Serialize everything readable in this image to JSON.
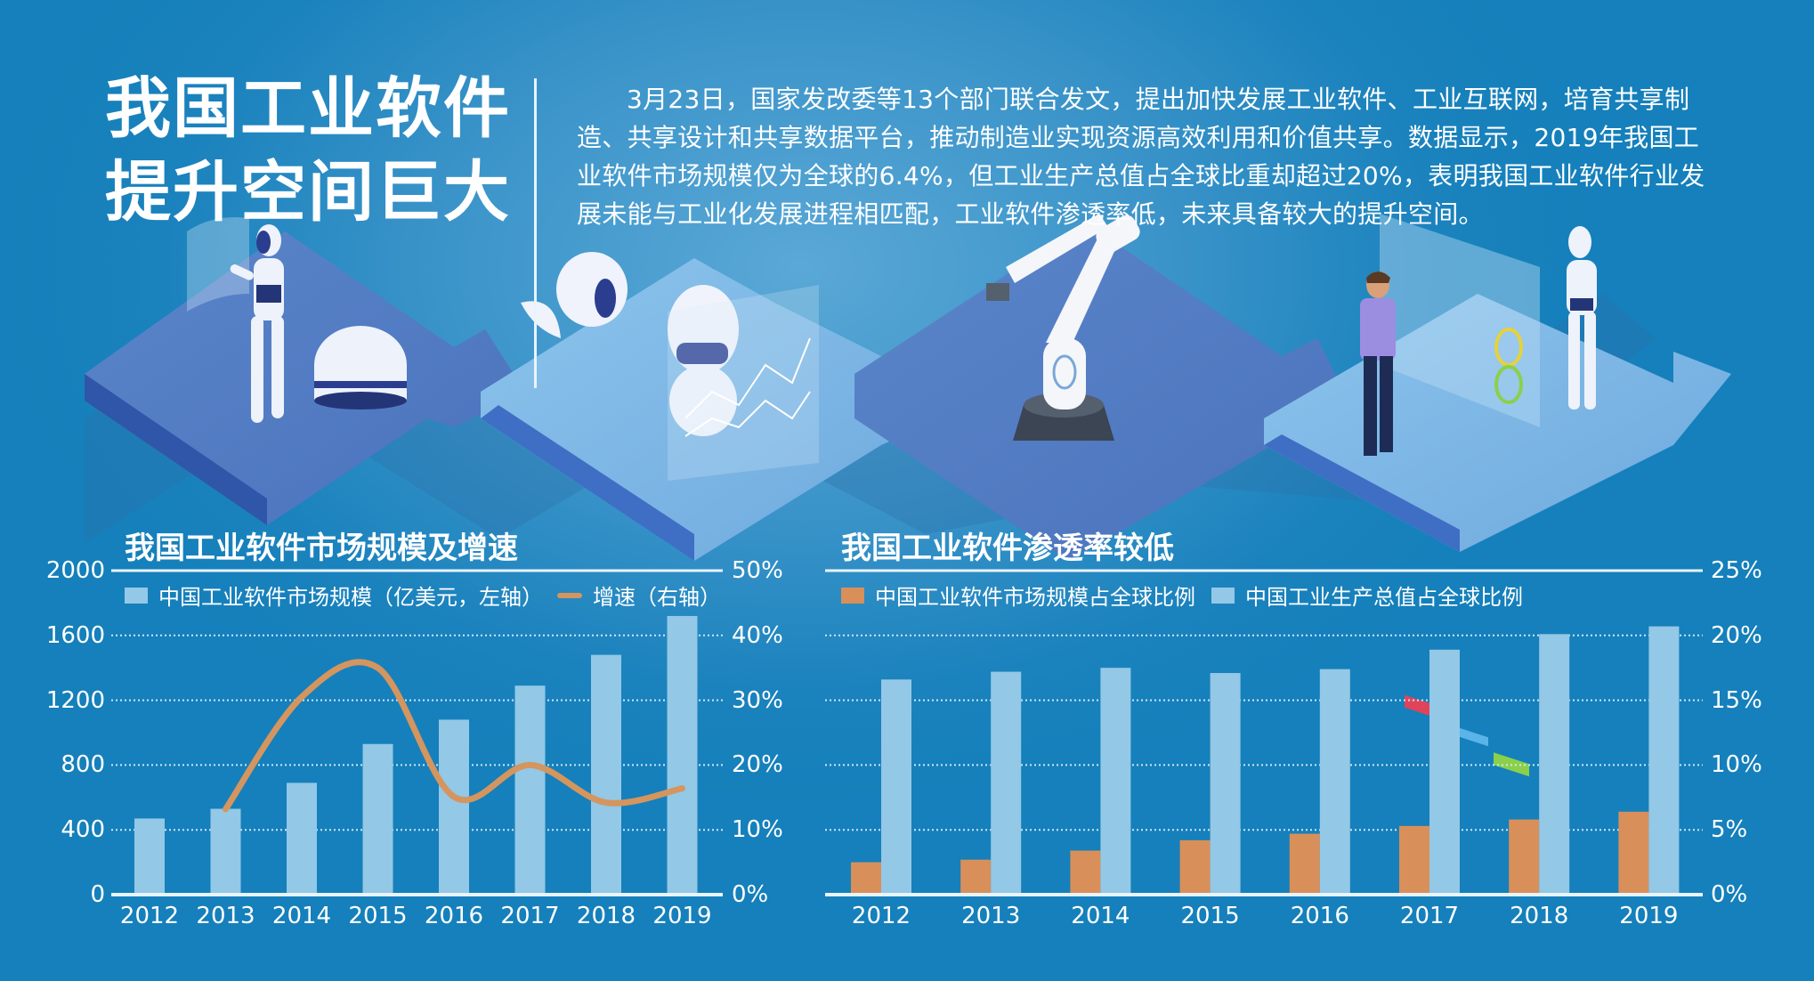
{
  "header": {
    "title_line1": "我国工业软件",
    "title_line2": "提升空间巨大",
    "paragraph": "3月23日，国家发改委等13个部门联合发文，提出加快发展工业软件、工业互联网，培育共享制造、共享设计和共享数据平台，推动制造业实现资源高效利用和价值共享。数据显示，2019年我国工业软件市场规模仅为全球的6.4%，但工业生产总值占全球比重却超过20%，表明我国工业软件行业发展未能与工业化发展进程相匹配，工业软件渗透率低，未来具备较大的提升空间。"
  },
  "illustration": {
    "items": [
      "humanoid-robot-with-hologram",
      "dome-robot",
      "service-robot-with-chart",
      "industrial-robot-arm",
      "engineer-at-dashboard",
      "humanoid-robot"
    ]
  },
  "colors": {
    "background": "#1580bb",
    "bar_light": "#93c8e6",
    "bar_orange": "#d98f5a",
    "line_orange": "#d4955f",
    "text": "#ffffff"
  },
  "charts": {
    "left": {
      "title": "我国工业软件市场规模及增速",
      "legend": {
        "bar": "中国工业软件市场规模（亿美元，左轴）",
        "line": "增速（右轴）"
      },
      "y_left_ticks": [
        "2000",
        "1600",
        "1200",
        "800",
        "400",
        "0"
      ],
      "y_right_ticks": [
        "50%",
        "40%",
        "30%",
        "20%",
        "10%",
        "0%"
      ],
      "x_ticks": [
        "2012",
        "2013",
        "2014",
        "2015",
        "2016",
        "2017",
        "2018",
        "2019"
      ]
    },
    "right": {
      "title": "我国工业软件渗透率较低",
      "legend": {
        "orange": "中国工业软件市场规模占全球比例",
        "light": "中国工业生产总值占全球比例"
      },
      "y_right_ticks": [
        "25%",
        "20%",
        "15%",
        "10%",
        "5%",
        "0%"
      ],
      "x_ticks": [
        "2012",
        "2013",
        "2014",
        "2015",
        "2016",
        "2017",
        "2018",
        "2019"
      ]
    }
  },
  "chart_data": [
    {
      "type": "bar",
      "title": "我国工业软件市场规模及增速",
      "categories": [
        "2012",
        "2013",
        "2014",
        "2015",
        "2016",
        "2017",
        "2018",
        "2019"
      ],
      "series": [
        {
          "name": "中国工业软件市场规模（亿美元，左轴）",
          "type": "bar",
          "axis": "left",
          "values": [
            470,
            530,
            690,
            930,
            1080,
            1290,
            1480,
            1720
          ]
        },
        {
          "name": "增速（右轴）",
          "type": "line",
          "axis": "right",
          "unit": "%",
          "values": [
            null,
            13.2,
            30.5,
            35.0,
            15.1,
            20.0,
            14.2,
            16.4
          ]
        }
      ],
      "xlabel": "",
      "ylabel_left": "亿美元",
      "ylabel_right": "%",
      "ylim_left": [
        0,
        2000
      ],
      "ylim_right": [
        0,
        50
      ],
      "yticks_left": [
        0,
        400,
        800,
        1200,
        1600,
        2000
      ],
      "yticks_right": [
        "0%",
        "10%",
        "20%",
        "30%",
        "40%",
        "50%"
      ],
      "grid": "dotted horizontal",
      "legend_position": "top"
    },
    {
      "type": "bar",
      "title": "我国工业软件渗透率较低",
      "categories": [
        "2012",
        "2013",
        "2014",
        "2015",
        "2016",
        "2017",
        "2018",
        "2019"
      ],
      "series": [
        {
          "name": "中国工业软件市场规模占全球比例",
          "unit": "%",
          "values": [
            2.5,
            2.7,
            3.4,
            4.2,
            4.7,
            5.3,
            5.8,
            6.4
          ]
        },
        {
          "name": "中国工业生产总值占全球比例",
          "unit": "%",
          "values": [
            16.6,
            17.2,
            17.5,
            17.1,
            17.4,
            18.9,
            20.1,
            20.7
          ]
        }
      ],
      "xlabel": "",
      "ylabel": "%",
      "ylim": [
        0,
        25
      ],
      "yticks": [
        "0%",
        "5%",
        "10%",
        "15%",
        "20%",
        "25%"
      ],
      "grid": "dotted horizontal",
      "legend_position": "top"
    }
  ]
}
